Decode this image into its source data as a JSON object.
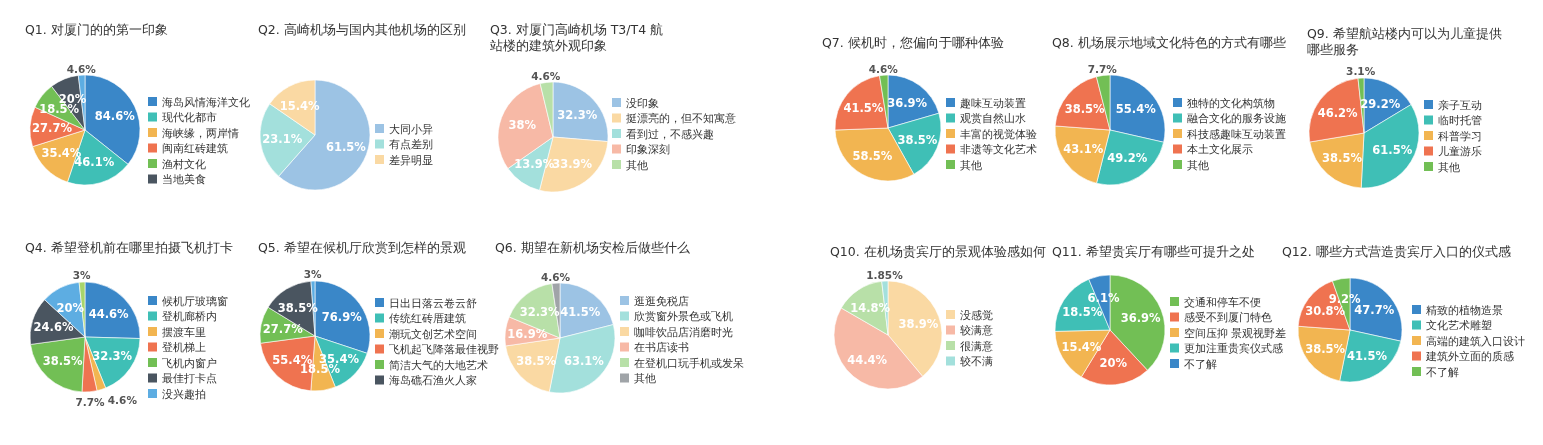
{
  "chart_data": [
    {
      "type": "pie",
      "title": "Q1. 对厦门的的第一印象",
      "categories": [
        "海岛风情海洋文化",
        "现代化都市",
        "海峡缘，两岸情",
        "闽南红砖建筑",
        "渔村文化",
        "当地美食",
        null
      ],
      "values": [
        84.6,
        46.1,
        35.4,
        27.7,
        18.5,
        20,
        4.6
      ],
      "value_labels": [
        "84.6%",
        "46.1%",
        "35.4%",
        "27.7%",
        "18.5%",
        "20%",
        "4.6%"
      ],
      "colors": [
        "#3a87c8",
        "#3fbfb6",
        "#f2b551",
        "#ef7350",
        "#72bf55",
        "#4a5560",
        "#5dade2"
      ],
      "legend": "right"
    },
    {
      "type": "pie",
      "title": "Q2. 高崎机场与国内其他机场的区别",
      "categories": [
        "大同小异",
        "有点差别",
        "差异明显"
      ],
      "values": [
        61.5,
        23.1,
        15.4
      ],
      "value_labels": [
        "61.5%",
        "23.1%",
        "15.4%"
      ],
      "colors": [
        "#9cc3e4",
        "#a3e0dc",
        "#fad9a3"
      ],
      "legend": "right"
    },
    {
      "type": "pie",
      "title": "Q3. 对厦门高崎机场 T3/T4 航站楼的建筑外观印象",
      "categories": [
        "没印象",
        "挺漂亮的，但不知寓意",
        "看到过，不感兴趣",
        "印象深刻",
        "其他"
      ],
      "values": [
        32.3,
        33.9,
        13.9,
        38,
        4.6
      ],
      "value_labels": [
        "32.3%",
        "33.9%",
        "13.9%",
        "38%",
        "4.6%"
      ],
      "colors": [
        "#9cc3e4",
        "#fad9a3",
        "#a3e0dc",
        "#f7b9a6",
        "#b8e0a8"
      ],
      "legend": "right"
    },
    {
      "type": "pie",
      "title": "Q7. 候机时，您偏向于哪种体验",
      "categories": [
        "趣味互动装置",
        "观赏自然山水",
        "丰富的视觉体验",
        "非遗等文化艺术",
        "其他"
      ],
      "values": [
        36.9,
        38.5,
        58.5,
        41.5,
        4.6
      ],
      "value_labels": [
        "36.9%",
        "38.5%",
        "58.5%",
        "41.5%",
        "4.6%"
      ],
      "colors": [
        "#3a87c8",
        "#3fbfb6",
        "#f2b551",
        "#ef7350",
        "#72bf55"
      ],
      "legend": "right"
    },
    {
      "type": "pie",
      "title": "Q8. 机场展示地域文化特色的方式有哪些",
      "categories": [
        "独特的文化构筑物",
        "融合文化的服务设施",
        "科技感趣味互动装置",
        "本土文化展示",
        "其他"
      ],
      "values": [
        55.4,
        49.2,
        43.1,
        38.5,
        7.7
      ],
      "value_labels": [
        "55.4%",
        "49.2%",
        "43.1%",
        "38.5%",
        "7.7%"
      ],
      "colors": [
        "#3a87c8",
        "#3fbfb6",
        "#f2b551",
        "#ef7350",
        "#72bf55"
      ],
      "legend": "right"
    },
    {
      "type": "pie",
      "title": "Q9. 希望航站楼内可以为儿童提供哪些服务",
      "categories": [
        "亲子互动",
        "临时托管",
        "科普学习",
        "儿童游乐",
        "其他"
      ],
      "values": [
        29.2,
        61.5,
        38.5,
        46.2,
        3.1
      ],
      "value_labels": [
        "29.2%",
        "61.5%",
        "38.5%",
        "46.2%",
        "3.1%"
      ],
      "colors": [
        "#3a87c8",
        "#3fbfb6",
        "#f2b551",
        "#ef7350",
        "#72bf55"
      ],
      "legend": "right"
    },
    {
      "type": "pie",
      "title": "Q4. 希望登机前在哪里拍摄飞机打卡",
      "categories": [
        "候机厅玻璃窗",
        "登机廊桥内",
        "摆渡车里",
        "登机梯上",
        "飞机内窗户",
        "最佳打卡点",
        "没兴趣拍",
        null
      ],
      "values": [
        44.6,
        32.3,
        4.6,
        7.7,
        38.5,
        24.6,
        20,
        3
      ],
      "value_labels": [
        "44.6%",
        "32.3%",
        "4.6%",
        "7.7%",
        "38.5%",
        "24.6%",
        "20%",
        "3%"
      ],
      "colors": [
        "#3a87c8",
        "#3fbfb6",
        "#f2b551",
        "#ef7350",
        "#72bf55",
        "#4a5560",
        "#5dade2",
        "#a8d56b"
      ],
      "legend": "right"
    },
    {
      "type": "pie",
      "title": "Q5. 希望在候机厅欣赏到怎样的景观",
      "categories": [
        "日出日落云卷云舒",
        "传统红砖厝建筑",
        "潮玩文创艺术空间",
        "飞机起飞降落最佳视野",
        "简洁大气的大地艺术",
        "海岛礁石渔火人家",
        null
      ],
      "values": [
        76.9,
        35.4,
        18.5,
        55.4,
        27.7,
        38.5,
        3
      ],
      "value_labels": [
        "76.9%",
        "35.4%",
        "18.5%",
        "55.4%",
        "27.7%",
        "38.5%",
        "3%"
      ],
      "colors": [
        "#3a87c8",
        "#3fbfb6",
        "#f2b551",
        "#ef7350",
        "#72bf55",
        "#4a5560",
        "#5dade2"
      ],
      "legend": "right"
    },
    {
      "type": "pie",
      "title": "Q6. 期望在新机场安检后做些什么",
      "categories": [
        "逛逛免税店",
        "欣赏窗外景色或飞机",
        "咖啡饮品店消磨时光",
        "在书店读书",
        "在登机口玩手机或发呆",
        "其他"
      ],
      "values": [
        41.5,
        63.1,
        38.5,
        16.9,
        32.3,
        4.6
      ],
      "value_labels": [
        "41.5%",
        "63.1%",
        "38.5%",
        "16.9%",
        "32.3%",
        "4.6%"
      ],
      "colors": [
        "#9cc3e4",
        "#a3e0dc",
        "#fad9a3",
        "#f7b9a6",
        "#b8e0a8",
        "#a0a4a8"
      ],
      "legend": "right"
    },
    {
      "type": "pie",
      "title": "Q10. 在机场贵宾厅的景观体验感如何",
      "categories": [
        "没感觉",
        "较满意",
        "很满意",
        "较不满"
      ],
      "values": [
        38.9,
        44.4,
        14.8,
        1.85
      ],
      "value_labels": [
        "38.9%",
        "44.4%",
        "14.8%",
        "1.85%"
      ],
      "colors": [
        "#fad9a3",
        "#f7b9a6",
        "#b8e0a8",
        "#a3e0dc"
      ],
      "legend": "right"
    },
    {
      "type": "pie",
      "title": "Q11. 希望贵宾厅有哪些可提升之处",
      "categories": [
        "交通和停车不便",
        "感受不到厦门特色",
        "空间压抑 景观视野差",
        "更加注重贵宾仪式感",
        "不了解"
      ],
      "values": [
        36.9,
        20,
        15.4,
        18.5,
        6.1
      ],
      "value_labels": [
        "36.9%",
        "20%",
        "15.4%",
        "18.5%",
        "6.1%"
      ],
      "colors": [
        "#72bf55",
        "#ef7350",
        "#f2b551",
        "#3fbfb6",
        "#3a87c8"
      ],
      "legend": "right"
    },
    {
      "type": "pie",
      "title": "Q12. 哪些方式营造贵宾厅入口的仪式感",
      "categories": [
        "精致的植物造景",
        "文化艺术雕塑",
        "高端的建筑入口设计",
        "建筑外立面的质感",
        "不了解"
      ],
      "values": [
        47.7,
        41.5,
        38.5,
        30.8,
        9.2
      ],
      "value_labels": [
        "47.7%",
        "41.5%",
        "38.5%",
        "30.8%",
        "9.2%"
      ],
      "colors": [
        "#3a87c8",
        "#3fbfb6",
        "#f2b551",
        "#ef7350",
        "#72bf55"
      ],
      "legend": "right"
    }
  ]
}
